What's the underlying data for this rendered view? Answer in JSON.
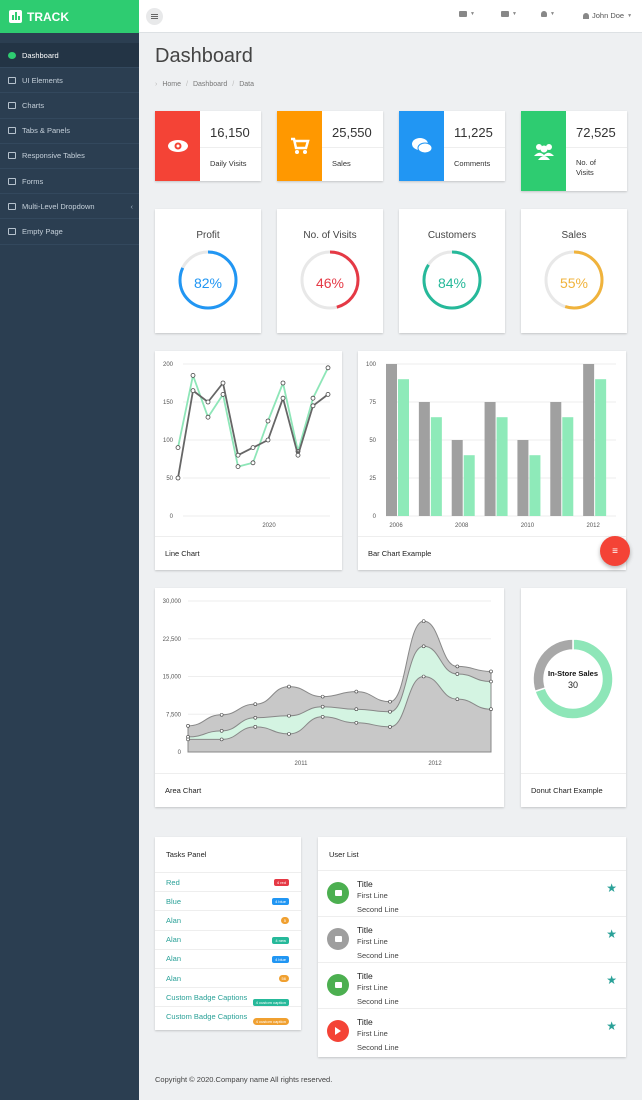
{
  "brand": {
    "name": "TRACK"
  },
  "sidebar": {
    "items": [
      {
        "label": "Dashboard",
        "icon": "dashboard-icon",
        "active": true
      },
      {
        "label": "UI Elements",
        "icon": "desktop-icon"
      },
      {
        "label": "Charts",
        "icon": "chart-icon"
      },
      {
        "label": "Tabs & Panels",
        "icon": "tabs-icon"
      },
      {
        "label": "Responsive Tables",
        "icon": "table-icon"
      },
      {
        "label": "Forms",
        "icon": "edit-icon"
      },
      {
        "label": "Multi-Level Dropdown",
        "icon": "sitemap-icon",
        "arrow": "‹"
      },
      {
        "label": "Empty Page",
        "icon": "file-icon"
      }
    ]
  },
  "topbar": {
    "user": "John Doe"
  },
  "page": {
    "title": "Dashboard",
    "breadcrumb": [
      "Home",
      "Dashboard",
      "Data"
    ]
  },
  "stats": [
    {
      "value": "16,150",
      "label": "Daily Visits",
      "color": "#f44336",
      "icon": "eye-icon"
    },
    {
      "value": "25,550",
      "label": "Sales",
      "color": "#ff9800",
      "icon": "shopping-cart-icon"
    },
    {
      "value": "11,225",
      "label": "Comments",
      "color": "#2196f3",
      "icon": "comments-icon"
    },
    {
      "value": "72,525",
      "label": "No. of\nVisits",
      "color": "#2ecc71",
      "icon": "users-icon"
    }
  ],
  "rings": [
    {
      "title": "Profit",
      "value": 82,
      "text": "82%",
      "color": "#2196f3"
    },
    {
      "title": "No. of Visits",
      "value": 46,
      "text": "46%",
      "color": "#e53945"
    },
    {
      "title": "Customers",
      "value": 84,
      "text": "84%",
      "color": "#26b99a"
    },
    {
      "title": "Sales",
      "value": 55,
      "text": "55%",
      "color": "#f0b33c"
    }
  ],
  "chart_data": [
    {
      "type": "line",
      "title": "Line Chart",
      "ylim": [
        0,
        200
      ],
      "yticks": [
        0,
        50,
        100,
        150,
        200
      ],
      "xtick_label": "2020",
      "series": [
        {
          "color": "#666666",
          "values": [
            50,
            165,
            150,
            175,
            80,
            90,
            100,
            155,
            80,
            145,
            160
          ]
        },
        {
          "color": "#8ee6b8",
          "values": [
            90,
            185,
            130,
            160,
            65,
            70,
            125,
            175,
            85,
            155,
            195
          ]
        }
      ]
    },
    {
      "type": "bar",
      "title": "Bar Chart Example",
      "ylim": [
        0,
        100
      ],
      "yticks": [
        0,
        25,
        50,
        75,
        100
      ],
      "xtick_labels": [
        "2006",
        "",
        "2008",
        "",
        "2010",
        "",
        "2012"
      ],
      "series": [
        {
          "color": "#a0a0a0",
          "values": [
            100,
            75,
            50,
            75,
            50,
            75,
            100
          ]
        },
        {
          "color": "#8eeab9",
          "values": [
            90,
            65,
            40,
            65,
            40,
            65,
            90
          ]
        }
      ]
    },
    {
      "type": "area",
      "title": "Area Chart",
      "ylim": [
        0,
        30000
      ],
      "yticks": [
        "0",
        "7,500",
        "15,000",
        "22,500",
        "30,000"
      ],
      "xtick_labels": [
        "2011",
        "2012"
      ],
      "series": [
        {
          "color": "#c8c8c8",
          "values": [
            5200,
            7400,
            9500,
            13000,
            11000,
            12000,
            10000,
            26000,
            17000,
            16000
          ]
        },
        {
          "color": "#d4f4e2",
          "values": [
            3000,
            4200,
            6800,
            7200,
            9000,
            8500,
            8000,
            21000,
            15500,
            14000
          ]
        },
        {
          "color": "#c8c8c8",
          "values": [
            2500,
            2500,
            5000,
            3600,
            7000,
            5800,
            5000,
            15000,
            10500,
            8500
          ]
        }
      ]
    },
    {
      "type": "pie",
      "title": "Donut Chart Example",
      "center_label": "In-Store Sales",
      "center_value": "30",
      "slices": [
        {
          "value": 70,
          "color": "#8ee6b8"
        },
        {
          "value": 30,
          "color": "#a8a8a8"
        }
      ]
    }
  ],
  "tasks": {
    "title": "Tasks Panel",
    "items": [
      {
        "label": "Red",
        "badge": "4 red",
        "color": "#e53945",
        "pill": false
      },
      {
        "label": "Blue",
        "badge": "4 blue",
        "color": "#2196f3",
        "pill": false
      },
      {
        "label": "Alan",
        "badge": "5",
        "color": "#f0a030",
        "pill": true
      },
      {
        "label": "Alan",
        "badge": "4 new",
        "color": "#26b99a",
        "pill": false
      },
      {
        "label": "Alan",
        "badge": "4 blue",
        "color": "#2196f3",
        "pill": false
      },
      {
        "label": "Alan",
        "badge": "56",
        "color": "#f0a030",
        "pill": true
      },
      {
        "label": "Custom Badge Captions",
        "badge": "4 custom caption",
        "color": "#26b99a",
        "pill": false
      },
      {
        "label": "Custom Badge Captions",
        "badge": "4 custom caption",
        "color": "#f0a030",
        "pill": true
      }
    ]
  },
  "users": {
    "title": "User List",
    "items": [
      {
        "title": "Title",
        "line1": "First Line",
        "line2": "Second Line",
        "color": "#4caf50",
        "icon": "chart-icon"
      },
      {
        "title": "Title",
        "line1": "First Line",
        "line2": "Second Line",
        "color": "#9e9e9e",
        "icon": "folder-icon"
      },
      {
        "title": "Title",
        "line1": "First Line",
        "line2": "Second Line",
        "color": "#4caf50",
        "icon": "chart-icon"
      },
      {
        "title": "Title",
        "line1": "First Line",
        "line2": "Second Line",
        "color": "#f44336",
        "icon": "play-icon"
      }
    ]
  },
  "footer": "Copyright © 2020.Company name All rights reserved."
}
